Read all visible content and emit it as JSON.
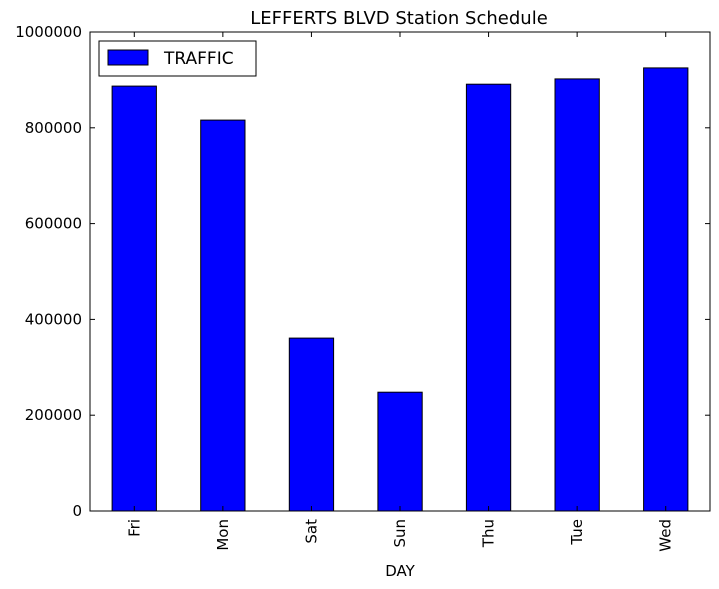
{
  "chart_data": {
    "type": "bar",
    "title": "LEFFERTS BLVD Station Schedule",
    "xlabel": "DAY",
    "ylabel": "",
    "categories": [
      "Fri",
      "Mon",
      "Sat",
      "Sun",
      "Thu",
      "Tue",
      "Wed"
    ],
    "series": [
      {
        "name": "TRAFFIC",
        "values": [
          887000,
          816000,
          361000,
          248000,
          891000,
          902000,
          925000
        ],
        "color": "#0000ff"
      }
    ],
    "ylim": [
      0,
      1000000
    ],
    "yticks": [
      0,
      200000,
      400000,
      600000,
      800000,
      1000000
    ],
    "ytick_labels": [
      "0",
      "200000",
      "400000",
      "600000",
      "800000",
      "1000000"
    ],
    "grid": false,
    "legend_position": "top-left"
  }
}
